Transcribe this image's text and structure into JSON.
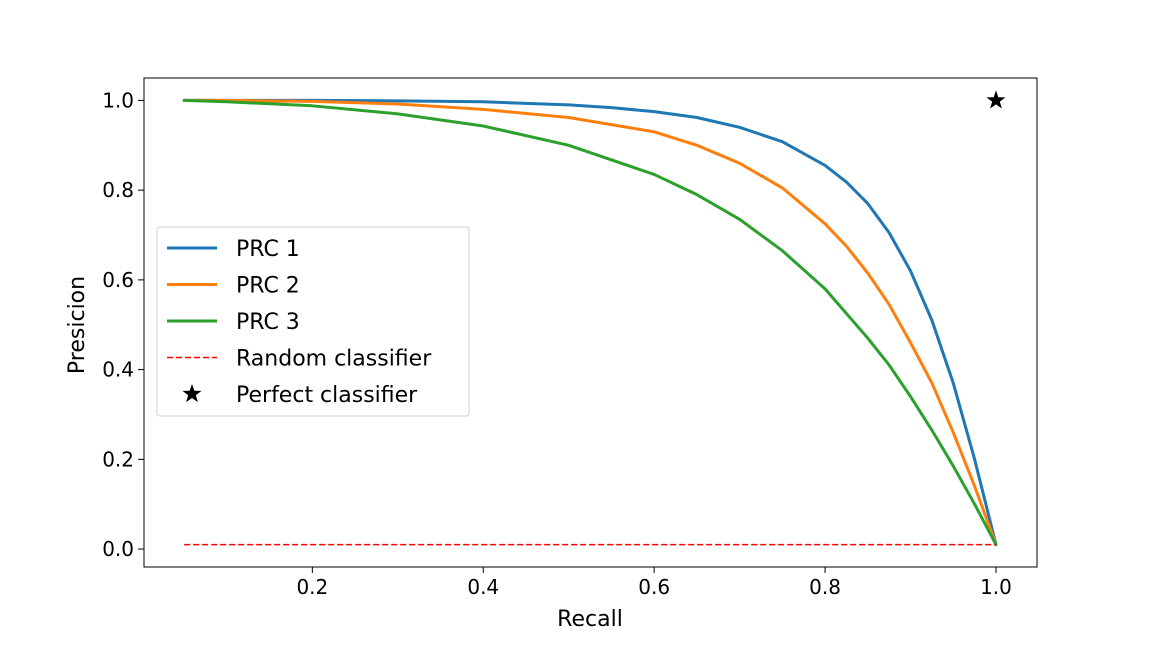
{
  "chart_data": {
    "type": "line",
    "xlabel": "Recall",
    "ylabel": "Presicion",
    "xlim": [
      0.003,
      1.048
    ],
    "ylim": [
      -0.04,
      1.05
    ],
    "xticks": [
      0.2,
      0.4,
      0.6,
      0.8,
      1.0
    ],
    "xtick_labels": [
      "0.2",
      "0.4",
      "0.6",
      "0.8",
      "1.0"
    ],
    "yticks": [
      0.0,
      0.2,
      0.4,
      0.6,
      0.8,
      1.0
    ],
    "ytick_labels": [
      "0.0",
      "0.2",
      "0.4",
      "0.6",
      "0.8",
      "1.0"
    ],
    "grid": false,
    "legend_position": "center-left",
    "series": [
      {
        "name": "PRC 1",
        "color": "#1f77b4",
        "style": "solid",
        "x": [
          0.05,
          0.1,
          0.2,
          0.3,
          0.4,
          0.5,
          0.55,
          0.6,
          0.65,
          0.7,
          0.75,
          0.8,
          0.825,
          0.85,
          0.875,
          0.9,
          0.925,
          0.95,
          0.975,
          1.0
        ],
        "y": [
          1.0,
          1.0,
          1.0,
          0.999,
          0.997,
          0.99,
          0.984,
          0.975,
          0.962,
          0.94,
          0.908,
          0.855,
          0.818,
          0.77,
          0.705,
          0.62,
          0.51,
          0.37,
          0.2,
          0.01
        ]
      },
      {
        "name": "PRC 2",
        "color": "#ff7f0e",
        "style": "solid",
        "x": [
          0.05,
          0.1,
          0.2,
          0.3,
          0.4,
          0.5,
          0.6,
          0.65,
          0.7,
          0.75,
          0.8,
          0.825,
          0.85,
          0.875,
          0.9,
          0.925,
          0.95,
          0.975,
          1.0
        ],
        "y": [
          1.0,
          1.0,
          0.998,
          0.992,
          0.98,
          0.962,
          0.93,
          0.9,
          0.86,
          0.805,
          0.725,
          0.675,
          0.615,
          0.545,
          0.46,
          0.37,
          0.26,
          0.14,
          0.01
        ]
      },
      {
        "name": "PRC 3",
        "color": "#2ca02c",
        "style": "solid",
        "x": [
          0.05,
          0.1,
          0.2,
          0.3,
          0.4,
          0.5,
          0.6,
          0.65,
          0.7,
          0.75,
          0.8,
          0.85,
          0.875,
          0.9,
          0.925,
          0.95,
          0.975,
          1.0
        ],
        "y": [
          1.0,
          0.997,
          0.988,
          0.97,
          0.943,
          0.9,
          0.835,
          0.79,
          0.735,
          0.665,
          0.58,
          0.47,
          0.41,
          0.34,
          0.265,
          0.185,
          0.1,
          0.01
        ]
      },
      {
        "name": "Random classifier",
        "color": "#ff0000",
        "style": "dashed",
        "x": [
          0.05,
          1.0
        ],
        "y": [
          0.01,
          0.01
        ]
      }
    ],
    "points": [
      {
        "name": "Perfect classifier",
        "marker": "star",
        "color": "#000000",
        "x": 1.0,
        "y": 1.0
      }
    ]
  }
}
